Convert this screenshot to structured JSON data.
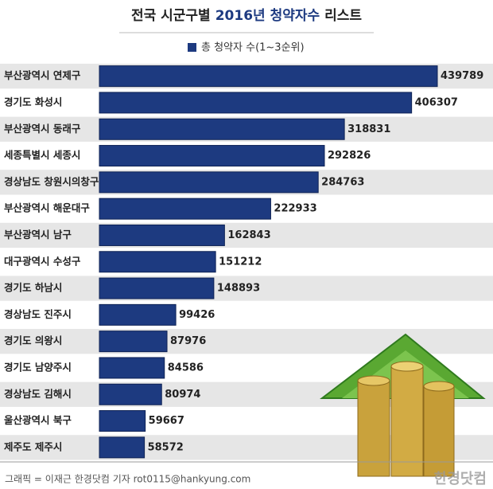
{
  "chart_data": {
    "type": "bar",
    "orientation": "horizontal",
    "title_segments": [
      "전국 시군구별",
      "2016년 청약자수",
      "리스트"
    ],
    "categories": [
      "부산광역시 연제구",
      "경기도 화성시",
      "부산광역시 동래구",
      "세종특별시 세종시",
      "경상남도 창원시의창구",
      "부산광역시 해운대구",
      "부산광역시 남구",
      "대구광역시 수성구",
      "경기도 하남시",
      "경상남도 진주시",
      "경기도 의왕시",
      "경기도 남양주시",
      "경상남도 김해시",
      "울산광역시 북구",
      "제주도 제주시"
    ],
    "series": [
      {
        "name": "총 청약자 수(1~3순위)",
        "color": "#1d3a80",
        "values": [
          439789,
          406307,
          318831,
          292826,
          284763,
          222933,
          162843,
          151212,
          148893,
          99426,
          87976,
          84586,
          80974,
          59667,
          58572
        ]
      }
    ],
    "credit": "그래픽 = 이재근 한경닷컴 기자 rot0115@hankyung.com",
    "watermark": "한경닷컴"
  }
}
